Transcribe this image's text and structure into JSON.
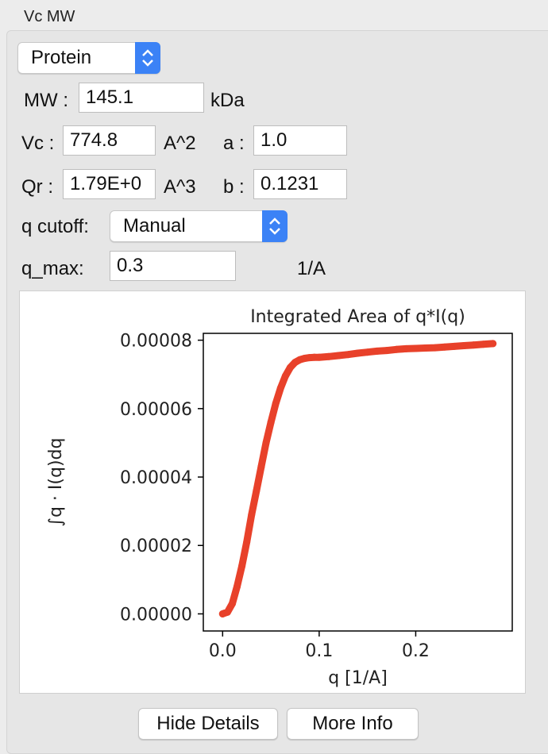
{
  "group": {
    "title": "Vc MW"
  },
  "molecule_type": {
    "selected": "Protein"
  },
  "mw": {
    "label": "MW :",
    "value": "145.1",
    "unit": "kDa"
  },
  "vc": {
    "label": "Vc :",
    "value": "774.8",
    "unit": "A^2"
  },
  "a": {
    "label": "a :",
    "value": "1.0"
  },
  "qr": {
    "label": "Qr :",
    "value": "1.79E+0",
    "unit": "A^3"
  },
  "b": {
    "label": "b :",
    "value": "0.1231"
  },
  "q_cutoff": {
    "label": "q cutoff:",
    "selected": "Manual"
  },
  "q_max": {
    "label": "q_max:",
    "value": "0.3",
    "unit": "1/A"
  },
  "buttons": {
    "hide_details": "Hide Details",
    "more_info": "More Info"
  },
  "colors": {
    "series": "#e8412a",
    "accent": "#3b82f6"
  },
  "chart_data": {
    "type": "scatter",
    "title": "Integrated Area of q*I(q)",
    "xlabel": "q [1/A]",
    "ylabel": "∫q · I(q)dq",
    "xlim": [
      -0.02,
      0.3
    ],
    "ylim": [
      -5e-06,
      8.2e-05
    ],
    "xticks": [
      0.0,
      0.1,
      0.2
    ],
    "xtick_labels": [
      "0.0",
      "0.1",
      "0.2"
    ],
    "yticks": [
      0.0,
      2e-05,
      4e-05,
      6e-05,
      8e-05
    ],
    "ytick_labels": [
      "0.00000",
      "0.00002",
      "0.00004",
      "0.00006",
      "0.00008"
    ],
    "series": [
      {
        "x": [
          0.0,
          0.005,
          0.01,
          0.015,
          0.02,
          0.025,
          0.03,
          0.035,
          0.04,
          0.045,
          0.05,
          0.055,
          0.06,
          0.065,
          0.07,
          0.075,
          0.08,
          0.085,
          0.09,
          0.095,
          0.1,
          0.11,
          0.12,
          0.13,
          0.14,
          0.15,
          0.16,
          0.17,
          0.18,
          0.19,
          0.2,
          0.21,
          0.22,
          0.23,
          0.24,
          0.25,
          0.26,
          0.27,
          0.28
        ],
        "y": [
          0.0,
          5e-07,
          3e-06,
          8e-06,
          1.4e-05,
          2.1e-05,
          2.9e-05,
          3.6e-05,
          4.3e-05,
          5e-05,
          5.6e-05,
          6.15e-05,
          6.6e-05,
          6.95e-05,
          7.2e-05,
          7.35e-05,
          7.43e-05,
          7.47e-05,
          7.49e-05,
          7.5e-05,
          7.5e-05,
          7.52e-05,
          7.55e-05,
          7.58e-05,
          7.62e-05,
          7.65e-05,
          7.68e-05,
          7.7e-05,
          7.73e-05,
          7.75e-05,
          7.76e-05,
          7.77e-05,
          7.78e-05,
          7.8e-05,
          7.82e-05,
          7.84e-05,
          7.86e-05,
          7.88e-05,
          7.9e-05
        ]
      }
    ]
  }
}
